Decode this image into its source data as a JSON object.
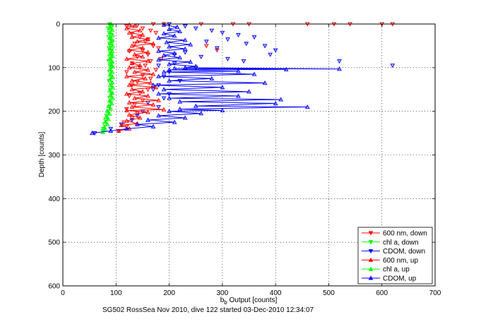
{
  "chart_data": {
    "type": "scatter",
    "xlabel_main": "b",
    "xlabel_sub": "b",
    "xlabel_rest": " Output [counts]",
    "ylabel": "Depth [counts]",
    "caption": "SG502 RossSea Nov 2010, dive 122 started 03-Dec-2010 12:34:07",
    "xlim": [
      0,
      700
    ],
    "ylim": [
      0,
      600
    ],
    "y_reversed": true,
    "grid": true,
    "legend_position": "bottom-right",
    "x_ticks": [
      "0",
      "100",
      "200",
      "300",
      "400",
      "500",
      "600",
      "700"
    ],
    "y_ticks": [
      "0",
      "100",
      "200",
      "300",
      "400",
      "500",
      "600"
    ],
    "legend": [
      {
        "label": "600 nm, down",
        "color": "#ff0000",
        "marker": "triangle-down"
      },
      {
        "label": "chl a, down",
        "color": "#00ff00",
        "marker": "triangle-down"
      },
      {
        "label": "CDOM, down",
        "color": "#0000ff",
        "marker": "triangle-down"
      },
      {
        "label": "600 nm, up",
        "color": "#ff0000",
        "marker": "triangle-up"
      },
      {
        "label": "chl a, up",
        "color": "#00ff00",
        "marker": "triangle-up"
      },
      {
        "label": "CDOM, up",
        "color": "#0000ff",
        "marker": "triangle-up"
      }
    ],
    "series": [
      {
        "name": "600 nm, down",
        "color": "#ff0000",
        "marker": "triangle-down",
        "connected": false,
        "points": [
          [
            190,
            0
          ],
          [
            260,
            0
          ],
          [
            320,
            0
          ],
          [
            350,
            0
          ],
          [
            460,
            0
          ],
          [
            510,
            0
          ],
          [
            540,
            0
          ],
          [
            600,
            0
          ],
          [
            620,
            0
          ],
          [
            170,
            0
          ],
          [
            140,
            3
          ],
          [
            120,
            5
          ],
          [
            150,
            10
          ],
          [
            165,
            15
          ],
          [
            175,
            20
          ],
          [
            130,
            22
          ],
          [
            145,
            30
          ],
          [
            160,
            35
          ],
          [
            155,
            40
          ],
          [
            135,
            45
          ],
          [
            170,
            50
          ],
          [
            180,
            55
          ],
          [
            150,
            60
          ],
          [
            125,
            62
          ],
          [
            160,
            70
          ],
          [
            140,
            75
          ],
          [
            185,
            80
          ],
          [
            165,
            85
          ],
          [
            130,
            90
          ],
          [
            155,
            95
          ],
          [
            145,
            100
          ],
          [
            175,
            105
          ],
          [
            120,
            110
          ],
          [
            150,
            118
          ],
          [
            165,
            125
          ],
          [
            140,
            132
          ],
          [
            130,
            140
          ],
          [
            160,
            150
          ],
          [
            145,
            158
          ],
          [
            125,
            165
          ],
          [
            150,
            175
          ],
          [
            135,
            185
          ],
          [
            120,
            195
          ],
          [
            140,
            205
          ],
          [
            130,
            215
          ],
          [
            115,
            225
          ],
          [
            120,
            235
          ],
          [
            105,
            245
          ],
          [
            270,
            50
          ],
          [
            290,
            60
          ]
        ]
      },
      {
        "name": "chl a, down",
        "color": "#00ff00",
        "marker": "triangle-down",
        "connected": false,
        "points": [
          [
            88,
            0
          ],
          [
            92,
            5
          ],
          [
            85,
            10
          ],
          [
            90,
            15
          ],
          [
            87,
            20
          ],
          [
            91,
            25
          ],
          [
            86,
            30
          ],
          [
            89,
            35
          ],
          [
            93,
            40
          ],
          [
            88,
            45
          ],
          [
            90,
            50
          ],
          [
            87,
            55
          ],
          [
            92,
            60
          ],
          [
            89,
            65
          ],
          [
            91,
            70
          ],
          [
            88,
            75
          ],
          [
            90,
            80
          ],
          [
            86,
            85
          ],
          [
            92,
            90
          ],
          [
            89,
            95
          ],
          [
            91,
            100
          ],
          [
            88,
            110
          ],
          [
            90,
            120
          ],
          [
            87,
            130
          ],
          [
            91,
            140
          ],
          [
            89,
            150
          ],
          [
            92,
            160
          ],
          [
            88,
            170
          ],
          [
            90,
            180
          ],
          [
            87,
            190
          ],
          [
            85,
            200
          ],
          [
            82,
            210
          ],
          [
            80,
            220
          ],
          [
            78,
            230
          ],
          [
            76,
            240
          ],
          [
            75,
            245
          ]
        ]
      },
      {
        "name": "CDOM, down",
        "color": "#0000ff",
        "marker": "triangle-down",
        "connected": false,
        "points": [
          [
            200,
            0
          ],
          [
            230,
            5
          ],
          [
            250,
            10
          ],
          [
            280,
            15
          ],
          [
            300,
            20
          ],
          [
            330,
            25
          ],
          [
            360,
            30
          ],
          [
            310,
            35
          ],
          [
            270,
            40
          ],
          [
            345,
            45
          ],
          [
            380,
            50
          ],
          [
            290,
            55
          ],
          [
            400,
            60
          ],
          [
            230,
            65
          ],
          [
            210,
            70
          ],
          [
            260,
            75
          ],
          [
            310,
            80
          ],
          [
            340,
            85
          ],
          [
            210,
            90
          ],
          [
            390,
            70
          ],
          [
            620,
            95
          ],
          [
            520,
            85
          ],
          [
            180,
            95
          ],
          [
            250,
            100
          ],
          [
            200,
            110
          ],
          [
            190,
            120
          ],
          [
            220,
            130
          ],
          [
            180,
            140
          ],
          [
            170,
            150
          ],
          [
            200,
            160
          ],
          [
            190,
            170
          ],
          [
            160,
            180
          ],
          [
            180,
            190
          ],
          [
            150,
            200
          ],
          [
            140,
            210
          ],
          [
            130,
            220
          ],
          [
            110,
            230
          ],
          [
            90,
            240
          ],
          [
            60,
            250
          ]
        ]
      },
      {
        "name": "600 nm, up",
        "color": "#ff0000",
        "marker": "triangle-up",
        "connected": true,
        "points": [
          [
            105,
            245
          ],
          [
            125,
            240
          ],
          [
            110,
            232
          ],
          [
            140,
            228
          ],
          [
            120,
            222
          ],
          [
            145,
            215
          ],
          [
            125,
            208
          ],
          [
            160,
            202
          ],
          [
            120,
            198
          ],
          [
            190,
            196
          ],
          [
            130,
            190
          ],
          [
            170,
            185
          ],
          [
            125,
            180
          ],
          [
            180,
            175
          ],
          [
            135,
            170
          ],
          [
            160,
            165
          ],
          [
            120,
            160
          ],
          [
            150,
            155
          ],
          [
            130,
            150
          ],
          [
            175,
            145
          ],
          [
            125,
            140
          ],
          [
            165,
            135
          ],
          [
            130,
            130
          ],
          [
            155,
            125
          ],
          [
            120,
            120
          ],
          [
            170,
            115
          ],
          [
            135,
            110
          ],
          [
            160,
            105
          ],
          [
            125,
            100
          ],
          [
            145,
            95
          ],
          [
            130,
            90
          ],
          [
            160,
            85
          ],
          [
            120,
            80
          ],
          [
            150,
            75
          ],
          [
            135,
            70
          ],
          [
            160,
            65
          ],
          [
            125,
            60
          ],
          [
            150,
            55
          ],
          [
            130,
            50
          ],
          [
            170,
            45
          ],
          [
            140,
            40
          ],
          [
            160,
            35
          ],
          [
            130,
            30
          ],
          [
            150,
            25
          ],
          [
            125,
            20
          ],
          [
            145,
            15
          ],
          [
            120,
            10
          ],
          [
            135,
            5
          ],
          [
            125,
            2
          ]
        ]
      },
      {
        "name": "chl a, up",
        "color": "#00ff00",
        "marker": "triangle-up",
        "connected": true,
        "points": [
          [
            75,
            248
          ],
          [
            80,
            242
          ],
          [
            78,
            236
          ],
          [
            84,
            230
          ],
          [
            80,
            224
          ],
          [
            86,
            218
          ],
          [
            82,
            212
          ],
          [
            88,
            206
          ],
          [
            84,
            200
          ],
          [
            90,
            194
          ],
          [
            86,
            188
          ],
          [
            92,
            182
          ],
          [
            88,
            176
          ],
          [
            94,
            170
          ],
          [
            89,
            164
          ],
          [
            93,
            158
          ],
          [
            88,
            152
          ],
          [
            94,
            146
          ],
          [
            89,
            140
          ],
          [
            93,
            134
          ],
          [
            88,
            128
          ],
          [
            94,
            122
          ],
          [
            89,
            116
          ],
          [
            93,
            110
          ],
          [
            88,
            104
          ],
          [
            94,
            98
          ],
          [
            89,
            92
          ],
          [
            93,
            86
          ],
          [
            88,
            80
          ],
          [
            94,
            74
          ],
          [
            89,
            68
          ],
          [
            93,
            62
          ],
          [
            88,
            56
          ],
          [
            94,
            50
          ],
          [
            89,
            44
          ],
          [
            93,
            38
          ],
          [
            88,
            32
          ],
          [
            94,
            26
          ],
          [
            89,
            20
          ],
          [
            93,
            14
          ],
          [
            88,
            8
          ],
          [
            92,
            3
          ],
          [
            89,
            0
          ]
        ]
      },
      {
        "name": "CDOM, up",
        "color": "#0000ff",
        "marker": "triangle-up",
        "connected": true,
        "points": [
          [
            55,
            250
          ],
          [
            90,
            245
          ],
          [
            120,
            240
          ],
          [
            170,
            235
          ],
          [
            140,
            230
          ],
          [
            210,
            225
          ],
          [
            160,
            220
          ],
          [
            230,
            215
          ],
          [
            180,
            210
          ],
          [
            260,
            205
          ],
          [
            200,
            200
          ],
          [
            300,
            198
          ],
          [
            220,
            195
          ],
          [
            460,
            190
          ],
          [
            250,
            188
          ],
          [
            400,
            182
          ],
          [
            220,
            178
          ],
          [
            410,
            173
          ],
          [
            200,
            170
          ],
          [
            330,
            165
          ],
          [
            180,
            160
          ],
          [
            350,
            155
          ],
          [
            190,
            150
          ],
          [
            300,
            145
          ],
          [
            170,
            140
          ],
          [
            380,
            135
          ],
          [
            200,
            130
          ],
          [
            280,
            125
          ],
          [
            180,
            120
          ],
          [
            360,
            115
          ],
          [
            190,
            110
          ],
          [
            330,
            108
          ],
          [
            200,
            105
          ],
          [
            420,
            104
          ],
          [
            210,
            102
          ],
          [
            520,
            103
          ],
          [
            230,
            100
          ],
          [
            250,
            97
          ],
          [
            200,
            92
          ],
          [
            240,
            87
          ],
          [
            180,
            82
          ],
          [
            220,
            77
          ],
          [
            190,
            72
          ],
          [
            210,
            67
          ],
          [
            180,
            62
          ],
          [
            230,
            57
          ],
          [
            200,
            52
          ],
          [
            240,
            47
          ],
          [
            195,
            42
          ],
          [
            230,
            37
          ],
          [
            180,
            32
          ],
          [
            210,
            27
          ],
          [
            190,
            22
          ],
          [
            220,
            17
          ],
          [
            200,
            12
          ],
          [
            215,
            7
          ],
          [
            190,
            2
          ]
        ]
      }
    ]
  }
}
